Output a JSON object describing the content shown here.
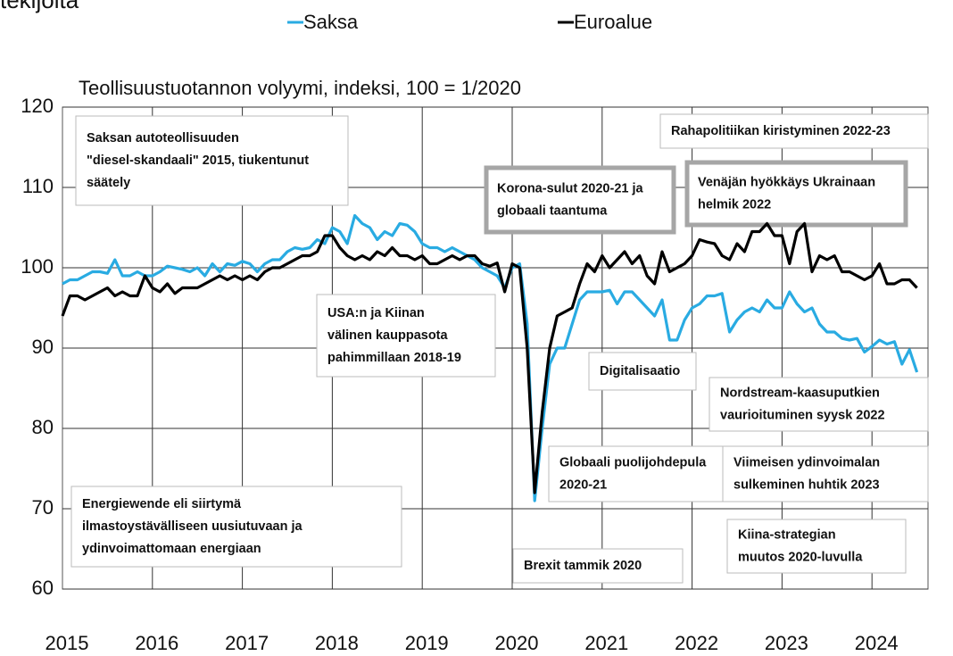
{
  "chart_data": {
    "type": "line",
    "title": "tekijöitä",
    "subtitle": "Teollisuustuotannon volyymi, indeksi, 100 = 1/2020",
    "categories": [
      "2015",
      null,
      null,
      null,
      null,
      null,
      null,
      null,
      null,
      null,
      null,
      null,
      "2016",
      null,
      null,
      null,
      null,
      null,
      null,
      null,
      null,
      null,
      null,
      null,
      "2017",
      null,
      null,
      null,
      null,
      null,
      null,
      null,
      null,
      null,
      null,
      null,
      "2018",
      null,
      null,
      null,
      null,
      null,
      null,
      null,
      null,
      null,
      null,
      null,
      "2019",
      null,
      null,
      null,
      null,
      null,
      null,
      null,
      null,
      null,
      null,
      null,
      "2020",
      null,
      null,
      null,
      null,
      null,
      null,
      null,
      null,
      null,
      null,
      null,
      "2021",
      null,
      null,
      null,
      null,
      null,
      null,
      null,
      null,
      null,
      null,
      null,
      "2022",
      null,
      null,
      null,
      null,
      null,
      null,
      null,
      null,
      null,
      null,
      null,
      "2023",
      null,
      null,
      null,
      null,
      null,
      null,
      null,
      null,
      null,
      null,
      null,
      "2024",
      null,
      null,
      null,
      null,
      null,
      null
    ],
    "series": [
      {
        "name": "Saksa",
        "color": "#29abe2",
        "values": [
          98,
          98.5,
          98.5,
          99,
          99.5,
          99.5,
          99.3,
          101,
          99,
          99,
          99.5,
          99,
          99,
          99.5,
          100.2,
          100,
          99.8,
          99.5,
          100,
          99,
          100.5,
          99.5,
          100.5,
          100.3,
          100.8,
          100.5,
          99.5,
          100.5,
          101,
          101,
          102,
          102.5,
          102.3,
          102.5,
          103.5,
          103,
          105,
          104.5,
          103,
          106.5,
          105.5,
          105,
          103.5,
          104.5,
          104,
          105.5,
          105.3,
          104.5,
          103,
          102.5,
          102.5,
          102,
          102.5,
          102,
          101.5,
          101,
          100,
          99.5,
          99,
          97.5,
          100,
          100.5,
          93,
          71,
          80,
          88,
          90,
          90,
          93,
          96,
          97,
          97,
          97,
          97.2,
          95.5,
          97,
          97,
          96,
          95,
          94,
          96,
          91,
          91,
          93.5,
          95,
          95.5,
          96.5,
          96.5,
          96.8,
          92,
          93.5,
          94.5,
          95,
          94.5,
          96,
          95,
          95,
          97,
          95.5,
          94.5,
          95,
          93,
          92,
          92,
          91.2,
          91,
          91.2,
          89.5,
          90.2,
          91,
          90.5,
          90.8,
          88,
          89.8,
          87
        ]
      },
      {
        "name": "Euroalue",
        "color": "#000000",
        "values": [
          94,
          96.5,
          96.5,
          96,
          96.5,
          97,
          97.5,
          96.5,
          97,
          96.5,
          96.5,
          99,
          97.5,
          97,
          98,
          96.8,
          97.5,
          97.5,
          97.5,
          98,
          98.5,
          99,
          98.5,
          99,
          98.5,
          99,
          98.5,
          99.5,
          100,
          100,
          100.5,
          101,
          101.5,
          101.5,
          102,
          104,
          104,
          102.5,
          101.5,
          101,
          101.5,
          101,
          102,
          101.5,
          102.5,
          101.5,
          101.5,
          101,
          101.5,
          100.5,
          100.5,
          101,
          101.5,
          101,
          101.5,
          101.5,
          100.5,
          100.2,
          100.6,
          97,
          100.5,
          100,
          90,
          72,
          82,
          90,
          94,
          94.5,
          95,
          98,
          100.5,
          99.5,
          101.5,
          100,
          101,
          102,
          100.5,
          101.5,
          99,
          98,
          102,
          99.5,
          100,
          100.5,
          101.5,
          103.5,
          103.2,
          103,
          101.5,
          101,
          103,
          102,
          104.5,
          104.5,
          105.5,
          104,
          104,
          100.5,
          104.5,
          105.5,
          99.5,
          101.5,
          101,
          101.5,
          99.5,
          99.5,
          99,
          98.5,
          99,
          100.5,
          98,
          98,
          98.5,
          98.5,
          97.5
        ]
      }
    ],
    "ylim": [
      60,
      120
    ],
    "yticks": [
      60,
      70,
      80,
      90,
      100,
      110,
      120
    ],
    "grid": true,
    "legend": "top",
    "annotations": [
      [
        "Saksan autoteollisuuden",
        "\"diesel-skandaali\" 2015, tiukentunut",
        "säätely"
      ],
      [
        "Rahapolitiikan kiristyminen 2022-23"
      ],
      [
        "Korona-sulut 2020-21 ja",
        "globaali taantuma"
      ],
      [
        "Venäjän hyökkäys Ukrainaan",
        "helmik 2022"
      ],
      [
        "USA:n ja Kiinan",
        "välinen kauppasota",
        "pahimmillaan 2018-19"
      ],
      [
        "Digitalisaatio"
      ],
      [
        "Nordstream-kaasuputkien",
        "vaurioituminen syysk 2022"
      ],
      [
        "Globaali puolijohdepula",
        "2020-21"
      ],
      [
        "Viimeisen ydinvoimalan",
        "sulkeminen huhtik 2023"
      ],
      [
        "Energiewende eli siirtymä",
        "ilmastoystävälliseen uusiutuvaan ja",
        "ydinvoimattomaan energiaan"
      ],
      [
        "Brexit tammik 2020"
      ],
      [
        "Kiina-strategian",
        "muutos 2020-luvulla"
      ]
    ]
  }
}
